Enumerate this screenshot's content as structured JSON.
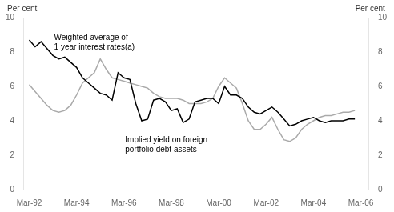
{
  "chart_data": {
    "type": "line",
    "ylabel": "Per cent",
    "y2label": "Per cent",
    "xlim": [
      1992.0,
      2006.6
    ],
    "xticks": [
      {
        "value": 1992.25,
        "label": "Mar-92"
      },
      {
        "value": 1994.25,
        "label": "Mar-94"
      },
      {
        "value": 1996.25,
        "label": "Mar-96"
      },
      {
        "value": 1998.25,
        "label": "Mar-98"
      },
      {
        "value": 2000.25,
        "label": "Mar-00"
      },
      {
        "value": 2002.25,
        "label": "Mar-02"
      },
      {
        "value": 2004.25,
        "label": "Mar-04"
      },
      {
        "value": 2006.25,
        "label": "Mar-06"
      }
    ],
    "ylim": [
      0,
      10
    ],
    "yticks": [
      0,
      2,
      4,
      6,
      8,
      10
    ],
    "y2lim": [
      0,
      10
    ],
    "y2ticks": [
      0,
      2,
      4,
      6,
      8,
      10
    ],
    "grid": false,
    "x": [
      1992.25,
      1992.5,
      1992.75,
      1993.0,
      1993.25,
      1993.5,
      1993.75,
      1994.0,
      1994.25,
      1994.5,
      1994.75,
      1995.0,
      1995.25,
      1995.5,
      1995.75,
      1996.0,
      1996.25,
      1996.5,
      1996.75,
      1997.0,
      1997.25,
      1997.5,
      1997.75,
      1998.0,
      1998.25,
      1998.5,
      1998.75,
      1999.0,
      1999.25,
      1999.5,
      1999.75,
      2000.0,
      2000.25,
      2000.5,
      2000.75,
      2001.0,
      2001.25,
      2001.5,
      2001.75,
      2002.0,
      2002.25,
      2002.5,
      2002.75,
      2003.0,
      2003.25,
      2003.5,
      2003.75,
      2004.0,
      2004.25,
      2004.5,
      2004.75,
      2005.0,
      2005.25,
      2005.5,
      2005.75,
      2006.0
    ],
    "series": [
      {
        "color": "#aaaaaa",
        "values": [
          6.1,
          5.7,
          5.3,
          4.9,
          4.6,
          4.5,
          4.6,
          4.9,
          5.5,
          6.2,
          6.5,
          6.8,
          7.6,
          7.0,
          6.5,
          6.4,
          6.3,
          6.2,
          6.1,
          6.0,
          5.9,
          5.6,
          5.4,
          5.3,
          5.3,
          5.3,
          5.2,
          5.0,
          5.0,
          5.0,
          5.1,
          5.3,
          6.0,
          6.5,
          6.2,
          5.9,
          5.0,
          4.0,
          3.5,
          3.5,
          3.8,
          4.2,
          3.5,
          2.9,
          2.8,
          3.0,
          3.5,
          3.8,
          4.0,
          4.2,
          4.3,
          4.3,
          4.4,
          4.5,
          4.5,
          4.6
        ]
      },
      {
        "color": "#000000",
        "values": [
          8.7,
          8.3,
          8.6,
          8.2,
          7.8,
          7.6,
          7.7,
          7.4,
          7.1,
          6.5,
          6.2,
          5.9,
          5.6,
          5.5,
          5.2,
          6.8,
          6.5,
          6.4,
          5.0,
          4.0,
          4.1,
          5.2,
          5.3,
          5.1,
          4.6,
          4.7,
          3.9,
          4.1,
          5.1,
          5.2,
          5.3,
          5.3,
          5.0,
          6.0,
          5.5,
          5.5,
          5.3,
          4.8,
          4.5,
          4.4,
          4.6,
          4.8,
          4.5,
          4.1,
          3.7,
          3.8,
          4.0,
          4.1,
          4.2,
          4.0,
          3.9,
          4.0,
          4.0,
          4.0,
          4.1,
          4.1
        ]
      }
    ],
    "annotations": [
      {
        "text": "Weighted average of\n1 year interest rates(a)",
        "x": 1993.3,
        "y": 8.05
      },
      {
        "text": "Implied yield on foreign\nportfolio debt assets",
        "x": 1996.3,
        "y": 3.1
      }
    ]
  }
}
